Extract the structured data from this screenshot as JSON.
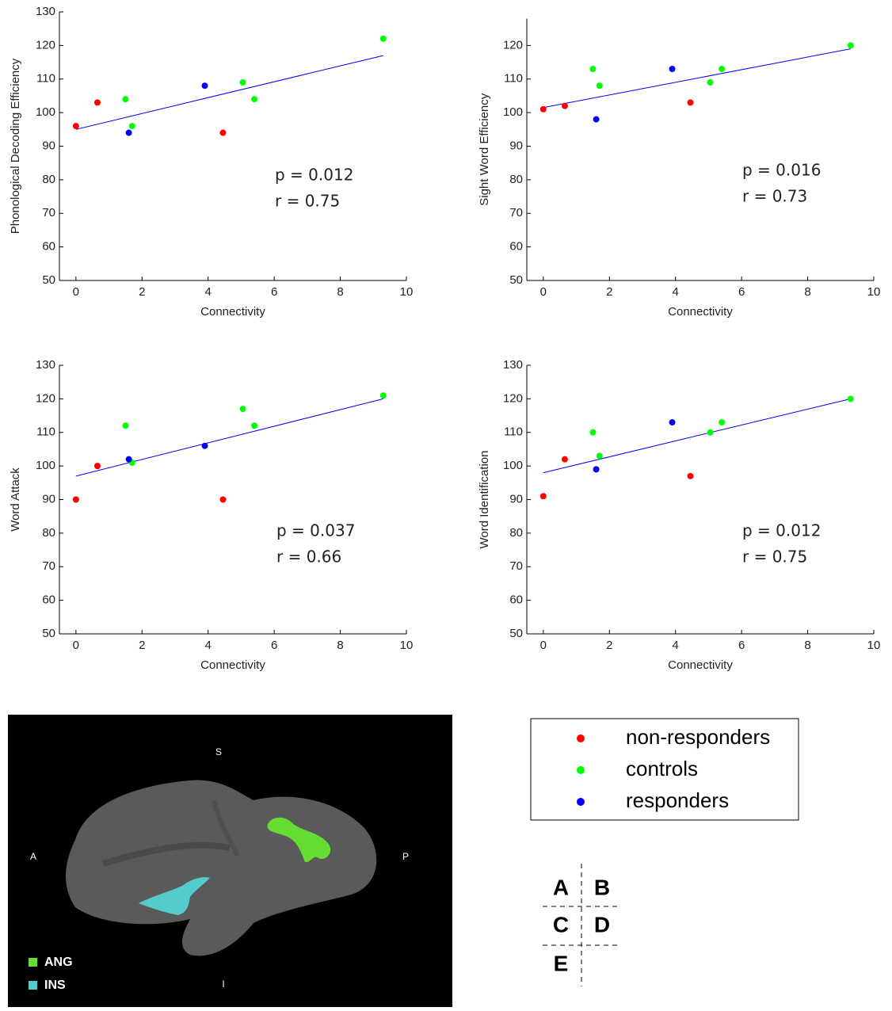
{
  "chart_data": [
    {
      "type": "scatter",
      "xlabel": "Connectivity",
      "ylabel": "Phonological Decoding Efficiency",
      "xlim": [
        -0.5,
        10
      ],
      "xticks": [
        0,
        2,
        4,
        6,
        8,
        10
      ],
      "ylim": [
        50,
        130
      ],
      "yticks": [
        50,
        60,
        70,
        80,
        90,
        100,
        110,
        120,
        130
      ],
      "series": [
        {
          "name": "non-responders",
          "color": "#ff0000",
          "x": [
            0,
            0.65,
            4.45
          ],
          "values": [
            96,
            103,
            94
          ]
        },
        {
          "name": "controls",
          "color": "#00ff00",
          "x": [
            1.5,
            1.7,
            5.05,
            5.4,
            9.3
          ],
          "values": [
            104,
            96,
            109,
            104,
            122
          ]
        },
        {
          "name": "responders",
          "color": "#0000ff",
          "x": [
            1.6,
            3.9
          ],
          "values": [
            94,
            108
          ]
        }
      ],
      "fit": {
        "color": "#0000ff",
        "x": [
          0,
          9.3
        ],
        "values": [
          95,
          117
        ]
      },
      "annotations": [
        "p = 0.012",
        "r = 0.75"
      ]
    },
    {
      "type": "scatter",
      "xlabel": "Connectivity",
      "ylabel": "Sight Word Efficiency",
      "xlim": [
        -0.5,
        10
      ],
      "xticks": [
        0,
        2,
        4,
        6,
        8,
        10
      ],
      "ylim": [
        50,
        128
      ],
      "yticks": [
        50,
        60,
        70,
        80,
        90,
        100,
        110,
        120
      ],
      "series": [
        {
          "name": "non-responders",
          "color": "#ff0000",
          "x": [
            0,
            0.65,
            4.45
          ],
          "values": [
            101,
            102,
            103
          ]
        },
        {
          "name": "controls",
          "color": "#00ff00",
          "x": [
            1.5,
            1.7,
            5.05,
            5.4,
            9.3
          ],
          "values": [
            113,
            108,
            109,
            113,
            120
          ]
        },
        {
          "name": "responders",
          "color": "#0000ff",
          "x": [
            1.6,
            3.9
          ],
          "values": [
            98,
            113
          ]
        }
      ],
      "fit": {
        "color": "#0000ff",
        "x": [
          0,
          9.3
        ],
        "values": [
          101.5,
          119
        ]
      },
      "annotations": [
        "p = 0.016",
        "r = 0.73"
      ]
    },
    {
      "type": "scatter",
      "xlabel": "Connectivity",
      "ylabel": "Word Attack",
      "xlim": [
        -0.5,
        10
      ],
      "xticks": [
        0,
        2,
        4,
        6,
        8,
        10
      ],
      "ylim": [
        50,
        130
      ],
      "yticks": [
        50,
        60,
        70,
        80,
        90,
        100,
        110,
        120,
        130
      ],
      "series": [
        {
          "name": "non-responders",
          "color": "#ff0000",
          "x": [
            0,
            0.65,
            4.45
          ],
          "values": [
            90,
            100,
            90
          ]
        },
        {
          "name": "controls",
          "color": "#00ff00",
          "x": [
            1.5,
            1.7,
            5.05,
            5.4,
            9.3
          ],
          "values": [
            112,
            101,
            117,
            112,
            121
          ]
        },
        {
          "name": "responders",
          "color": "#0000ff",
          "x": [
            1.6,
            3.9
          ],
          "values": [
            102,
            106
          ]
        }
      ],
      "fit": {
        "color": "#0000ff",
        "x": [
          0,
          9.3
        ],
        "values": [
          97,
          120
        ]
      },
      "annotations": [
        "p = 0.037",
        "r = 0.66"
      ]
    },
    {
      "type": "scatter",
      "xlabel": "Connectivity",
      "ylabel": "Word Identification",
      "xlim": [
        -0.5,
        10
      ],
      "xticks": [
        0,
        2,
        4,
        6,
        8,
        10
      ],
      "ylim": [
        50,
        130
      ],
      "yticks": [
        50,
        60,
        70,
        80,
        90,
        100,
        110,
        120,
        130
      ],
      "series": [
        {
          "name": "non-responders",
          "color": "#ff0000",
          "x": [
            0,
            0.65,
            4.45
          ],
          "values": [
            91,
            102,
            97
          ]
        },
        {
          "name": "controls",
          "color": "#00ff00",
          "x": [
            1.5,
            1.7,
            5.05,
            5.4,
            9.3
          ],
          "values": [
            110,
            103,
            110,
            113,
            120
          ]
        },
        {
          "name": "responders",
          "color": "#0000ff",
          "x": [
            1.6,
            3.9
          ],
          "values": [
            99,
            113
          ]
        }
      ],
      "fit": {
        "color": "#0000ff",
        "x": [
          0,
          9.3
        ],
        "values": [
          98,
          120
        ]
      },
      "annotations": [
        "p = 0.012",
        "r = 0.75"
      ]
    }
  ],
  "brain_panel": {
    "orientation": {
      "superior": "S",
      "anterior": "A",
      "posterior": "P",
      "inferior": "I"
    },
    "regions": [
      {
        "label": "ANG",
        "color": "#66dd33"
      },
      {
        "label": "INS",
        "color": "#55cccc"
      }
    ]
  },
  "panel_key": {
    "labels": [
      "A",
      "B",
      "C",
      "D",
      "E"
    ]
  }
}
